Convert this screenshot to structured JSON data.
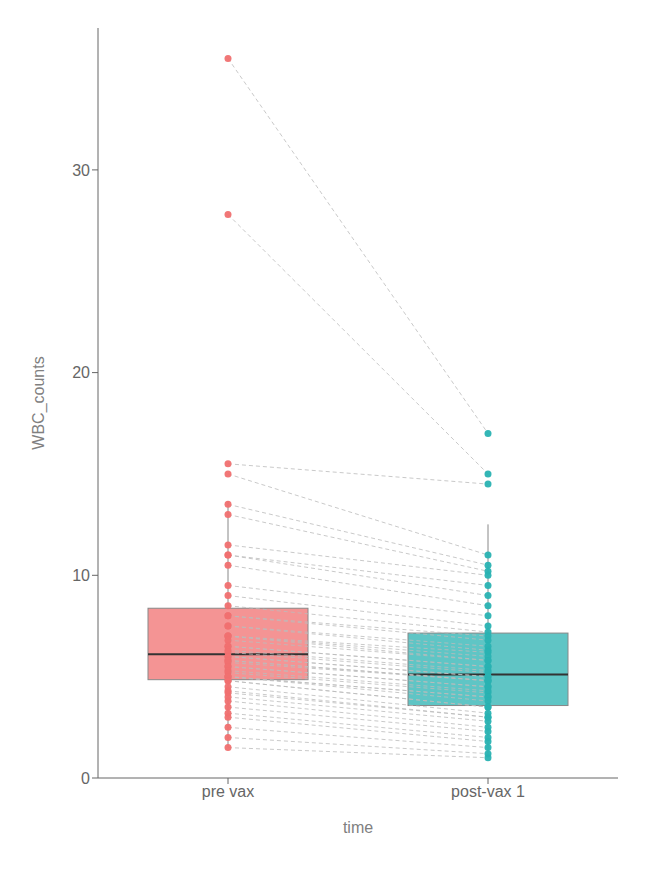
{
  "chart_data": {
    "type": "box",
    "xlabel": "time",
    "ylabel": "WBC_counts",
    "categories": [
      "pre vax",
      "post-vax 1"
    ],
    "colors": [
      "#F07070",
      "#29B2B2"
    ],
    "values": [
      [
        35.5,
        27.8,
        15.5,
        15.0,
        13.5,
        13.0,
        11.5,
        11.0,
        11.0,
        10.5,
        9.5,
        9.0,
        8.5,
        8.0,
        8.0,
        7.5,
        7.5,
        7.0,
        7.0,
        7.0,
        6.8,
        6.5,
        6.5,
        6.3,
        6.2,
        6.0,
        6.0,
        5.8,
        5.8,
        5.7,
        5.5,
        5.5,
        5.3,
        5.2,
        5.0,
        5.0,
        5.0,
        4.8,
        4.8,
        4.5,
        4.3,
        4.2,
        4.0,
        3.8,
        3.5,
        3.2,
        3.0,
        2.5,
        2.0,
        1.5
      ],
      [
        17.0,
        15.0,
        14.5,
        11.0,
        10.5,
        10.2,
        10.0,
        9.5,
        9.0,
        8.5,
        8.0,
        7.5,
        7.2,
        7.0,
        6.8,
        6.5,
        6.3,
        6.2,
        6.0,
        5.8,
        5.8,
        5.5,
        5.5,
        5.3,
        5.2,
        5.0,
        5.0,
        4.8,
        4.8,
        4.8,
        4.5,
        4.5,
        4.3,
        4.2,
        4.0,
        4.0,
        3.8,
        3.5,
        3.5,
        3.2,
        3.0,
        3.0,
        2.8,
        2.5,
        2.3,
        2.0,
        1.8,
        1.5,
        1.2,
        1.0
      ]
    ],
    "boxes": [
      {
        "q1": 4.85,
        "median": 6.1,
        "q3": 8.375,
        "whisker_low": 1.5,
        "whisker_high": 13.6625
      },
      {
        "q1": 3.575,
        "median": 5.1,
        "q3": 7.15,
        "whisker_low": 1.0,
        "whisker_high": 12.5125
      }
    ],
    "connector": {
      "color": "#BBBBBB",
      "line_style": "dashed"
    },
    "ylim": [
      0,
      37
    ],
    "yticks": [
      0,
      10,
      20,
      30
    ]
  }
}
